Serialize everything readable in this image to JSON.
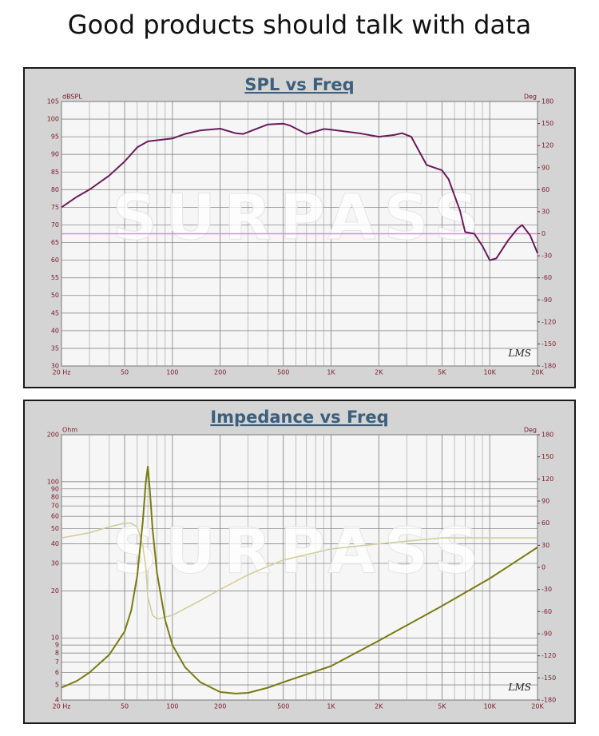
{
  "title": "Good products should talk with data",
  "chart_data": [
    {
      "type": "line",
      "title": "SPL vs Freq",
      "y_label": "dBSPL",
      "y2_label": "Deg",
      "annotation": "LMS",
      "watermark": "SURPASS",
      "xscale": "log",
      "yscale": "linear",
      "grid": true,
      "xlim": [
        20,
        20000
      ],
      "xticks": [
        {
          "value": 20,
          "label": "20 Hz"
        },
        50,
        100,
        200,
        500,
        {
          "value": 1000,
          "label": "1K"
        },
        {
          "value": 2000,
          "label": "2K"
        },
        {
          "value": 5000,
          "label": "5K"
        },
        {
          "value": 10000,
          "label": "10K"
        },
        {
          "value": 20000,
          "label": "20K"
        }
      ],
      "ylim": [
        30,
        105
      ],
      "yticks": [
        30,
        35,
        40,
        45,
        50,
        55,
        60,
        65,
        70,
        75,
        80,
        85,
        90,
        95,
        100,
        105
      ],
      "y2lim": [
        -180,
        180
      ],
      "y2ticks": [
        -180,
        -150,
        -120,
        -90,
        -60,
        -30,
        0,
        30,
        60,
        90,
        120,
        150,
        180
      ],
      "series": [
        {
          "color": "#d890cc",
          "axis": "y2",
          "x": [
            20,
            20000
          ],
          "values": [
            0,
            0
          ]
        },
        {
          "color": "#6b1a5c",
          "x": [
            20,
            25,
            30,
            40,
            50,
            60,
            70,
            80,
            100,
            120,
            150,
            200,
            250,
            280,
            350,
            400,
            500,
            550,
            700,
            800,
            900,
            1000,
            1500,
            2000,
            2500,
            2800,
            3200,
            4000,
            5000,
            5500,
            6500,
            7000,
            8000,
            9000,
            10000,
            11000,
            13000,
            15000,
            16000,
            18000,
            20000
          ],
          "values": [
            75,
            78,
            80,
            84,
            88,
            92,
            93.7,
            94,
            94.5,
            95.8,
            96.8,
            97.3,
            96,
            95.8,
            97.5,
            98.5,
            98.7,
            98.2,
            95.8,
            96.5,
            97.2,
            97,
            96,
            95,
            95.5,
            96,
            95,
            87,
            85.5,
            83,
            74,
            68,
            67.5,
            64,
            60,
            60.5,
            65.5,
            69,
            70,
            67,
            62
          ]
        }
      ]
    },
    {
      "type": "line",
      "title": "Impedance vs Freq",
      "y_label": "Ohm",
      "y2_label": "Deg",
      "annotation": "LMS",
      "watermark": "SURPASS",
      "xscale": "log",
      "yscale": "log",
      "grid": true,
      "xlim": [
        20,
        20000
      ],
      "xticks": [
        {
          "value": 20,
          "label": "20 Hz"
        },
        50,
        100,
        200,
        500,
        {
          "value": 1000,
          "label": "1K"
        },
        {
          "value": 2000,
          "label": "2K"
        },
        {
          "value": 5000,
          "label": "5K"
        },
        {
          "value": 10000,
          "label": "10K"
        },
        {
          "value": 20000,
          "label": "20K"
        }
      ],
      "ylim": [
        4,
        200
      ],
      "yticks": [
        4,
        5,
        6,
        7,
        8,
        9,
        10,
        20,
        30,
        40,
        50,
        60,
        70,
        80,
        90,
        100,
        200
      ],
      "y2lim": [
        -180,
        180
      ],
      "y2ticks": [
        -180,
        -150,
        -120,
        -90,
        -60,
        -30,
        0,
        30,
        60,
        90,
        120,
        150,
        180
      ],
      "series": [
        {
          "color": "#cfcf9a",
          "axis": "y2",
          "x": [
            20,
            30,
            40,
            50,
            55,
            60,
            65,
            68,
            70,
            75,
            80,
            100,
            150,
            200,
            300,
            500,
            1000,
            2000,
            5000,
            10000,
            20000
          ],
          "values": [
            40,
            47,
            55,
            60,
            60,
            55,
            30,
            0,
            -40,
            -65,
            -70,
            -65,
            -45,
            -30,
            -10,
            10,
            25,
            32,
            40,
            40,
            40
          ]
        },
        {
          "color": "#7a7a12",
          "x": [
            20,
            25,
            30,
            40,
            50,
            55,
            60,
            65,
            68,
            70,
            72,
            75,
            80,
            90,
            100,
            120,
            150,
            200,
            250,
            300,
            400,
            500,
            1000,
            2000,
            5000,
            10000,
            20000
          ],
          "values": [
            4.8,
            5.3,
            6,
            7.8,
            11,
            15,
            25,
            55,
            100,
            125,
            90,
            50,
            26,
            13,
            9,
            6.5,
            5.2,
            4.5,
            4.4,
            4.45,
            4.8,
            5.2,
            6.6,
            9.6,
            16,
            24,
            38
          ]
        }
      ]
    }
  ]
}
